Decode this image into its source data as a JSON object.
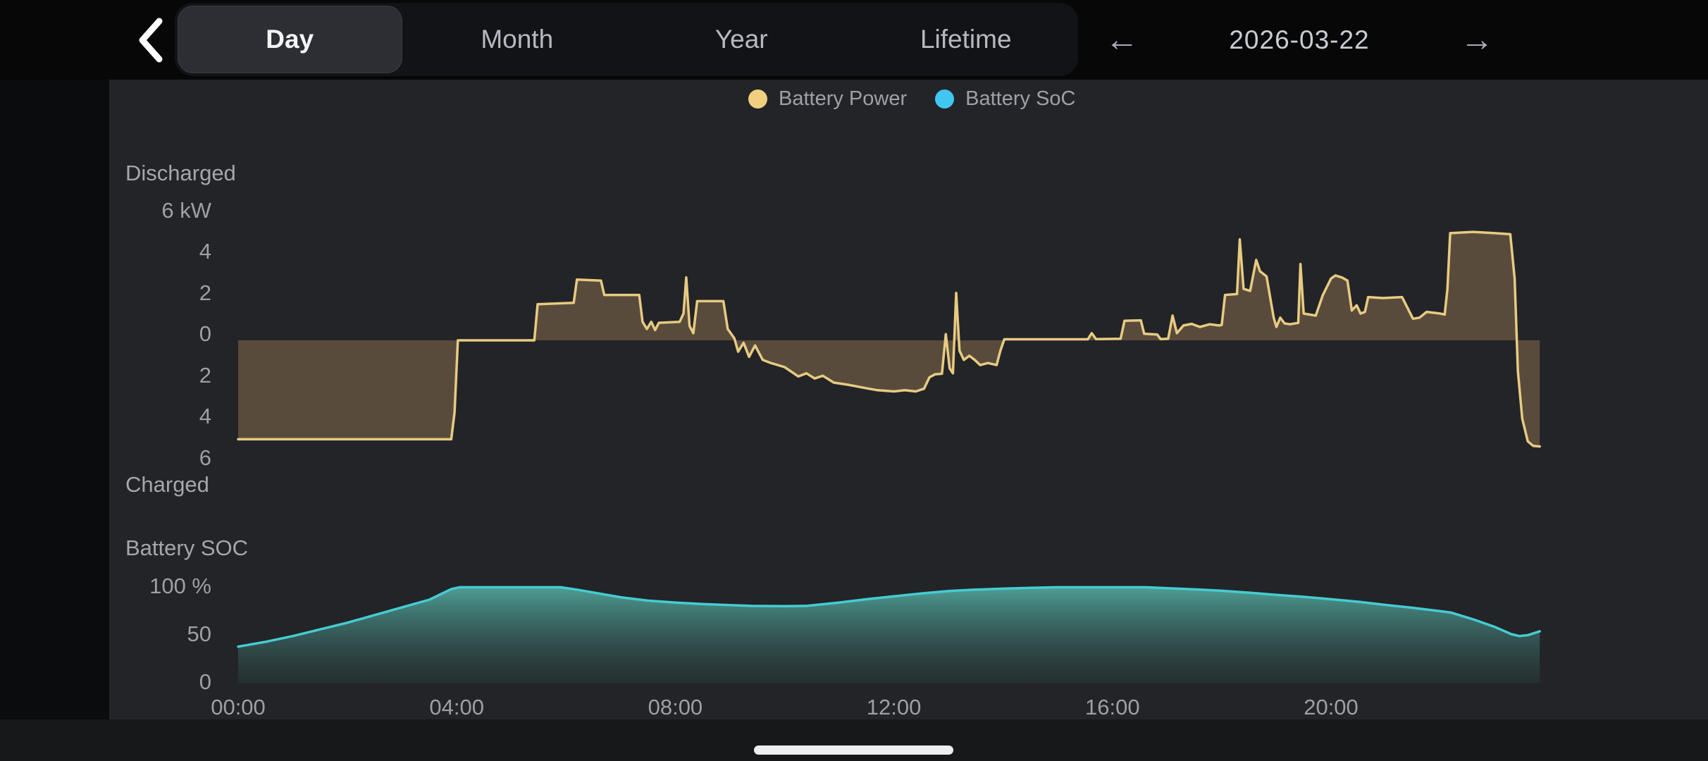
{
  "header": {
    "back_icon": "chevron-left",
    "tabs": [
      {
        "label": "Day",
        "selected": true
      },
      {
        "label": "Month",
        "selected": false
      },
      {
        "label": "Year",
        "selected": false
      },
      {
        "label": "Lifetime",
        "selected": false
      }
    ],
    "prev_icon": "←",
    "date": "2026-03-22",
    "next_icon": "→"
  },
  "legend": [
    {
      "label": "Battery Power",
      "color": "#f2cf80"
    },
    {
      "label": "Battery SoC",
      "color": "#41c6f2"
    }
  ],
  "chart_data": [
    {
      "type": "area",
      "name": "Battery Power",
      "unit": "kW",
      "label_top": "Discharged",
      "label_bottom": "Charged",
      "ylim": [
        -6,
        6
      ],
      "grid": false,
      "legend_position": "top",
      "yticks": [
        {
          "v": 6,
          "label": "6 kW"
        },
        {
          "v": 4,
          "label": "4"
        },
        {
          "v": 2,
          "label": "2"
        },
        {
          "v": 0,
          "label": "0"
        },
        {
          "v": -2,
          "label": "2"
        },
        {
          "v": -4,
          "label": "4"
        },
        {
          "v": -6,
          "label": "6"
        }
      ],
      "line_color": "#e8cb81",
      "fill_color": "#594b3c",
      "points": [
        [
          0,
          -4.8
        ],
        [
          3.9,
          -4.8
        ],
        [
          3.96,
          -3.5
        ],
        [
          4.02,
          0
        ],
        [
          5.42,
          0
        ],
        [
          5.48,
          1.75
        ],
        [
          6.14,
          1.82
        ],
        [
          6.2,
          2.95
        ],
        [
          6.64,
          2.9
        ],
        [
          6.7,
          2.2
        ],
        [
          7.34,
          2.2
        ],
        [
          7.4,
          0.9
        ],
        [
          7.48,
          0.55
        ],
        [
          7.56,
          0.9
        ],
        [
          7.63,
          0.5
        ],
        [
          7.7,
          0.85
        ],
        [
          8.08,
          0.9
        ],
        [
          8.15,
          1.3
        ],
        [
          8.2,
          3.05
        ],
        [
          8.26,
          0.7
        ],
        [
          8.33,
          0.35
        ],
        [
          8.4,
          1.9
        ],
        [
          8.88,
          1.9
        ],
        [
          8.96,
          0.55
        ],
        [
          9.08,
          0.1
        ],
        [
          9.15,
          -0.55
        ],
        [
          9.25,
          -0.12
        ],
        [
          9.35,
          -0.8
        ],
        [
          9.46,
          -0.25
        ],
        [
          9.6,
          -0.95
        ],
        [
          9.75,
          -1.1
        ],
        [
          10,
          -1.3
        ],
        [
          10.25,
          -1.75
        ],
        [
          10.4,
          -1.6
        ],
        [
          10.55,
          -1.85
        ],
        [
          10.7,
          -1.72
        ],
        [
          10.9,
          -2.05
        ],
        [
          11.15,
          -2.15
        ],
        [
          11.45,
          -2.3
        ],
        [
          11.7,
          -2.42
        ],
        [
          12,
          -2.48
        ],
        [
          12.2,
          -2.42
        ],
        [
          12.4,
          -2.48
        ],
        [
          12.55,
          -2.35
        ],
        [
          12.65,
          -1.8
        ],
        [
          12.75,
          -1.65
        ],
        [
          12.88,
          -1.62
        ],
        [
          12.95,
          0.3
        ],
        [
          13.02,
          -1.35
        ],
        [
          13.08,
          -1.6
        ],
        [
          13.14,
          2.3
        ],
        [
          13.2,
          -0.5
        ],
        [
          13.28,
          -0.95
        ],
        [
          13.38,
          -0.75
        ],
        [
          13.48,
          -0.95
        ],
        [
          13.58,
          -1.2
        ],
        [
          13.72,
          -1.1
        ],
        [
          13.88,
          -1.2
        ],
        [
          13.95,
          -0.5
        ],
        [
          14.02,
          0.05
        ],
        [
          15.55,
          0.05
        ],
        [
          15.62,
          0.35
        ],
        [
          15.7,
          0.06
        ],
        [
          16.15,
          0.08
        ],
        [
          16.22,
          0.95
        ],
        [
          16.52,
          0.97
        ],
        [
          16.58,
          0.32
        ],
        [
          16.82,
          0.28
        ],
        [
          16.88,
          0.06
        ],
        [
          17.02,
          0.08
        ],
        [
          17.1,
          1.2
        ],
        [
          17.18,
          0.35
        ],
        [
          17.3,
          0.72
        ],
        [
          17.45,
          0.8
        ],
        [
          17.6,
          0.65
        ],
        [
          17.78,
          0.78
        ],
        [
          17.95,
          0.72
        ],
        [
          18.0,
          0.75
        ],
        [
          18.06,
          2.2
        ],
        [
          18.28,
          2.25
        ],
        [
          18.33,
          4.9
        ],
        [
          18.4,
          2.5
        ],
        [
          18.52,
          2.4
        ],
        [
          18.63,
          3.9
        ],
        [
          18.7,
          3.35
        ],
        [
          18.82,
          3.1
        ],
        [
          18.95,
          1.1
        ],
        [
          19.0,
          0.65
        ],
        [
          19.07,
          1.1
        ],
        [
          19.15,
          0.82
        ],
        [
          19.25,
          0.78
        ],
        [
          19.4,
          0.85
        ],
        [
          19.44,
          3.7
        ],
        [
          19.5,
          1.3
        ],
        [
          19.72,
          1.2
        ],
        [
          19.85,
          2.2
        ],
        [
          20.0,
          3.0
        ],
        [
          20.08,
          3.15
        ],
        [
          20.2,
          3.05
        ],
        [
          20.3,
          2.9
        ],
        [
          20.38,
          1.45
        ],
        [
          20.47,
          1.7
        ],
        [
          20.54,
          1.3
        ],
        [
          20.62,
          1.38
        ],
        [
          20.68,
          2.1
        ],
        [
          20.95,
          2.05
        ],
        [
          21.3,
          2.1
        ],
        [
          21.5,
          1.05
        ],
        [
          21.62,
          1.1
        ],
        [
          21.75,
          1.38
        ],
        [
          22.0,
          1.3
        ],
        [
          22.08,
          1.25
        ],
        [
          22.13,
          2.5
        ],
        [
          22.18,
          5.2
        ],
        [
          22.6,
          5.26
        ],
        [
          23.0,
          5.2
        ],
        [
          23.28,
          5.15
        ],
        [
          23.36,
          3.0
        ],
        [
          23.42,
          -1.5
        ],
        [
          23.5,
          -3.8
        ],
        [
          23.6,
          -4.9
        ],
        [
          23.7,
          -5.12
        ],
        [
          23.82,
          -5.15
        ]
      ]
    },
    {
      "type": "area",
      "name": "Battery SOC",
      "unit": "%",
      "title": "Battery SOC",
      "ylim": [
        0,
        100
      ],
      "grid": false,
      "yticks": [
        {
          "v": 100,
          "label": "100 %"
        },
        {
          "v": 50,
          "label": "50"
        },
        {
          "v": 0,
          "label": "0"
        }
      ],
      "line_color": "#45ccd2",
      "fill_top": "#58baaf",
      "fill_bottom": "#2d4642",
      "points": [
        [
          0,
          37
        ],
        [
          0.5,
          42
        ],
        [
          1,
          48
        ],
        [
          1.5,
          55
        ],
        [
          2,
          62
        ],
        [
          2.5,
          70
        ],
        [
          3,
          78
        ],
        [
          3.5,
          86
        ],
        [
          3.9,
          97
        ],
        [
          4.05,
          99
        ],
        [
          5.9,
          99
        ],
        [
          6.2,
          96.5
        ],
        [
          6.6,
          92.5
        ],
        [
          7,
          88.5
        ],
        [
          7.5,
          85
        ],
        [
          8,
          83
        ],
        [
          8.5,
          81.5
        ],
        [
          9,
          80.3
        ],
        [
          9.4,
          79.5
        ],
        [
          10,
          79.2
        ],
        [
          10.4,
          79.5
        ],
        [
          11,
          83
        ],
        [
          11.5,
          86.5
        ],
        [
          12,
          89.5
        ],
        [
          12.5,
          92.5
        ],
        [
          13,
          95
        ],
        [
          13.5,
          96.5
        ],
        [
          14,
          97.5
        ],
        [
          14.5,
          98.3
        ],
        [
          15,
          99
        ],
        [
          16.6,
          99
        ],
        [
          17,
          98
        ],
        [
          17.5,
          96.8
        ],
        [
          18,
          95.3
        ],
        [
          18.5,
          93.3
        ],
        [
          19,
          91
        ],
        [
          19.5,
          89
        ],
        [
          20,
          86.5
        ],
        [
          20.5,
          83.8
        ],
        [
          21,
          80.5
        ],
        [
          21.5,
          77.5
        ],
        [
          22,
          74
        ],
        [
          22.2,
          72.5
        ],
        [
          22.6,
          65.5
        ],
        [
          23,
          57.5
        ],
        [
          23.3,
          50
        ],
        [
          23.45,
          48
        ],
        [
          23.6,
          49
        ],
        [
          23.82,
          53
        ]
      ]
    }
  ],
  "xaxis": {
    "unit": "time",
    "range_hours": [
      0,
      24
    ],
    "ticks": [
      {
        "h": 0,
        "label": "00:00"
      },
      {
        "h": 4,
        "label": "04:00"
      },
      {
        "h": 8,
        "label": "08:00"
      },
      {
        "h": 12,
        "label": "12:00"
      },
      {
        "h": 16,
        "label": "16:00"
      },
      {
        "h": 20,
        "label": "20:00"
      }
    ]
  }
}
